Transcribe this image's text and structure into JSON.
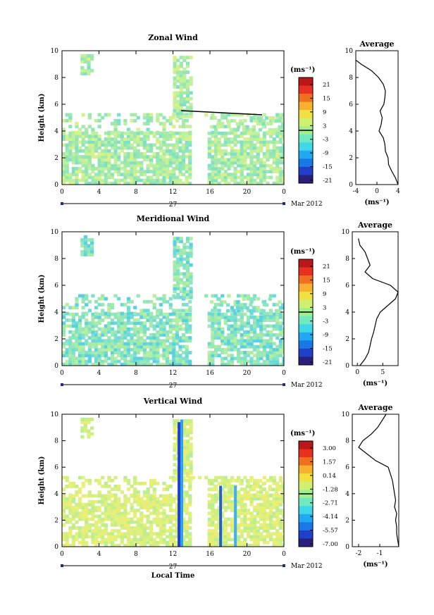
{
  "colors": {
    "colorbar": [
      "#2a1f7a",
      "#2040c8",
      "#1878e8",
      "#20a8f0",
      "#40d8e8",
      "#70e8c0",
      "#a0f090",
      "#d0f070",
      "#f0e040",
      "#f8b030",
      "#f07020",
      "#e83020",
      "#b81818"
    ],
    "field_hint": [
      "#9ee8b0",
      "#c8f09a",
      "#e8f080",
      "#60d8f0"
    ]
  },
  "chart_data": [
    {
      "type": "heatmap",
      "title": "Zonal Wind",
      "xlabel": "",
      "ylabel": "Height (km)",
      "xlim": [
        0,
        24
      ],
      "ylim": [
        0,
        10
      ],
      "x_ticks": [
        "0",
        "4",
        "8",
        "12",
        "16",
        "20",
        "0"
      ],
      "y_ticks": [
        "0",
        "2",
        "4",
        "6",
        "8",
        "10"
      ],
      "date_day": "27",
      "date_month": "Mar 2012",
      "colorbar": {
        "unit": "(ms⁻¹)",
        "labels": [
          "21",
          "15",
          "9",
          "3",
          "-3",
          "-9",
          "-15",
          "-21"
        ],
        "range": [
          -24,
          24
        ]
      },
      "average": {
        "title": "Average",
        "xlabel": "(ms⁻¹)",
        "x_ticks": [
          "-4",
          "0",
          "4"
        ],
        "y_ticks": [
          "0",
          "2",
          "4",
          "6",
          "8",
          "10"
        ],
        "xlim": [
          -4,
          4
        ],
        "profile": {
          "height": [
            0,
            0.5,
            1,
            1.5,
            2,
            2.5,
            3,
            3.5,
            4,
            4.5,
            5,
            5.5,
            6,
            6.5,
            7,
            7.5,
            8,
            8.5,
            9,
            9.3
          ],
          "value": [
            4,
            3.5,
            2.8,
            2.2,
            2.1,
            1.6,
            1.5,
            1.2,
            0.4,
            0.8,
            1,
            0.6,
            1.3,
            1.5,
            1.6,
            1.2,
            0.3,
            -1,
            -3,
            -4
          ]
        }
      }
    },
    {
      "type": "heatmap",
      "title": "Meridional Wind",
      "xlabel": "",
      "ylabel": "Height (km)",
      "xlim": [
        0,
        24
      ],
      "ylim": [
        0,
        10
      ],
      "x_ticks": [
        "0",
        "4",
        "8",
        "12",
        "16",
        "20",
        "0"
      ],
      "y_ticks": [
        "0",
        "2",
        "4",
        "6",
        "8",
        "10"
      ],
      "date_day": "27",
      "date_month": "Mar 2012",
      "colorbar": {
        "unit": "(ms⁻¹)",
        "labels": [
          "21",
          "15",
          "9",
          "3",
          "-3",
          "-9",
          "-15",
          "-21"
        ],
        "range": [
          -24,
          24
        ]
      },
      "average": {
        "title": "Average",
        "xlabel": "(ms⁻¹)",
        "x_ticks": [
          "0",
          "5"
        ],
        "y_ticks": [
          "0",
          "2",
          "4",
          "6",
          "8",
          "10"
        ],
        "xlim": [
          -1,
          8
        ],
        "profile": {
          "height": [
            0,
            0.5,
            1,
            1.5,
            2,
            2.5,
            3,
            3.5,
            4,
            4.5,
            5,
            5.5,
            6,
            6.5,
            7,
            7.5,
            8,
            8.5,
            9,
            9.5
          ],
          "value": [
            0.5,
            1.5,
            2.2,
            2.5,
            2.8,
            3.2,
            3.5,
            3.8,
            4.5,
            6,
            7.5,
            8,
            6.5,
            3,
            1.5,
            2.5,
            2.0,
            1.5,
            0.5,
            0.2
          ]
        }
      }
    },
    {
      "type": "heatmap",
      "title": "Vertical Wind",
      "xlabel": "Local Time",
      "ylabel": "Height (km)",
      "xlim": [
        0,
        24
      ],
      "ylim": [
        0,
        10
      ],
      "x_ticks": [
        "0",
        "4",
        "8",
        "12",
        "16",
        "20",
        "0"
      ],
      "y_ticks": [
        "0",
        "2",
        "4",
        "6",
        "8",
        "10"
      ],
      "date_day": "27",
      "date_month": "Mar 2012",
      "colorbar": {
        "unit": "(ms⁻¹)",
        "labels": [
          "3.00",
          "1.57",
          "0.14",
          "-1.28",
          "-2.71",
          "-4.14",
          "-5.57",
          "-7.00"
        ],
        "range": [
          -7.5,
          3.5
        ]
      },
      "average": {
        "title": "Average",
        "xlabel": "(ms⁻¹)",
        "x_ticks": [
          "-2",
          "-1"
        ],
        "y_ticks": [
          "0",
          "2",
          "4",
          "6",
          "8",
          "10"
        ],
        "xlim": [
          -2.3,
          -0.1
        ],
        "profile": {
          "height": [
            0,
            0.5,
            1,
            1.5,
            2,
            2.5,
            3,
            3.5,
            4,
            4.5,
            5,
            5.5,
            6,
            6.5,
            7,
            7.5,
            8,
            8.5,
            9,
            9.5,
            10
          ],
          "value": [
            -0.1,
            -0.15,
            -0.2,
            -0.2,
            -0.25,
            -0.2,
            -0.3,
            -0.25,
            -0.3,
            -0.35,
            -0.4,
            -0.5,
            -0.6,
            -1.2,
            -1.6,
            -2.0,
            -1.8,
            -1.4,
            -1.1,
            -0.9,
            -0.7
          ]
        }
      }
    }
  ]
}
